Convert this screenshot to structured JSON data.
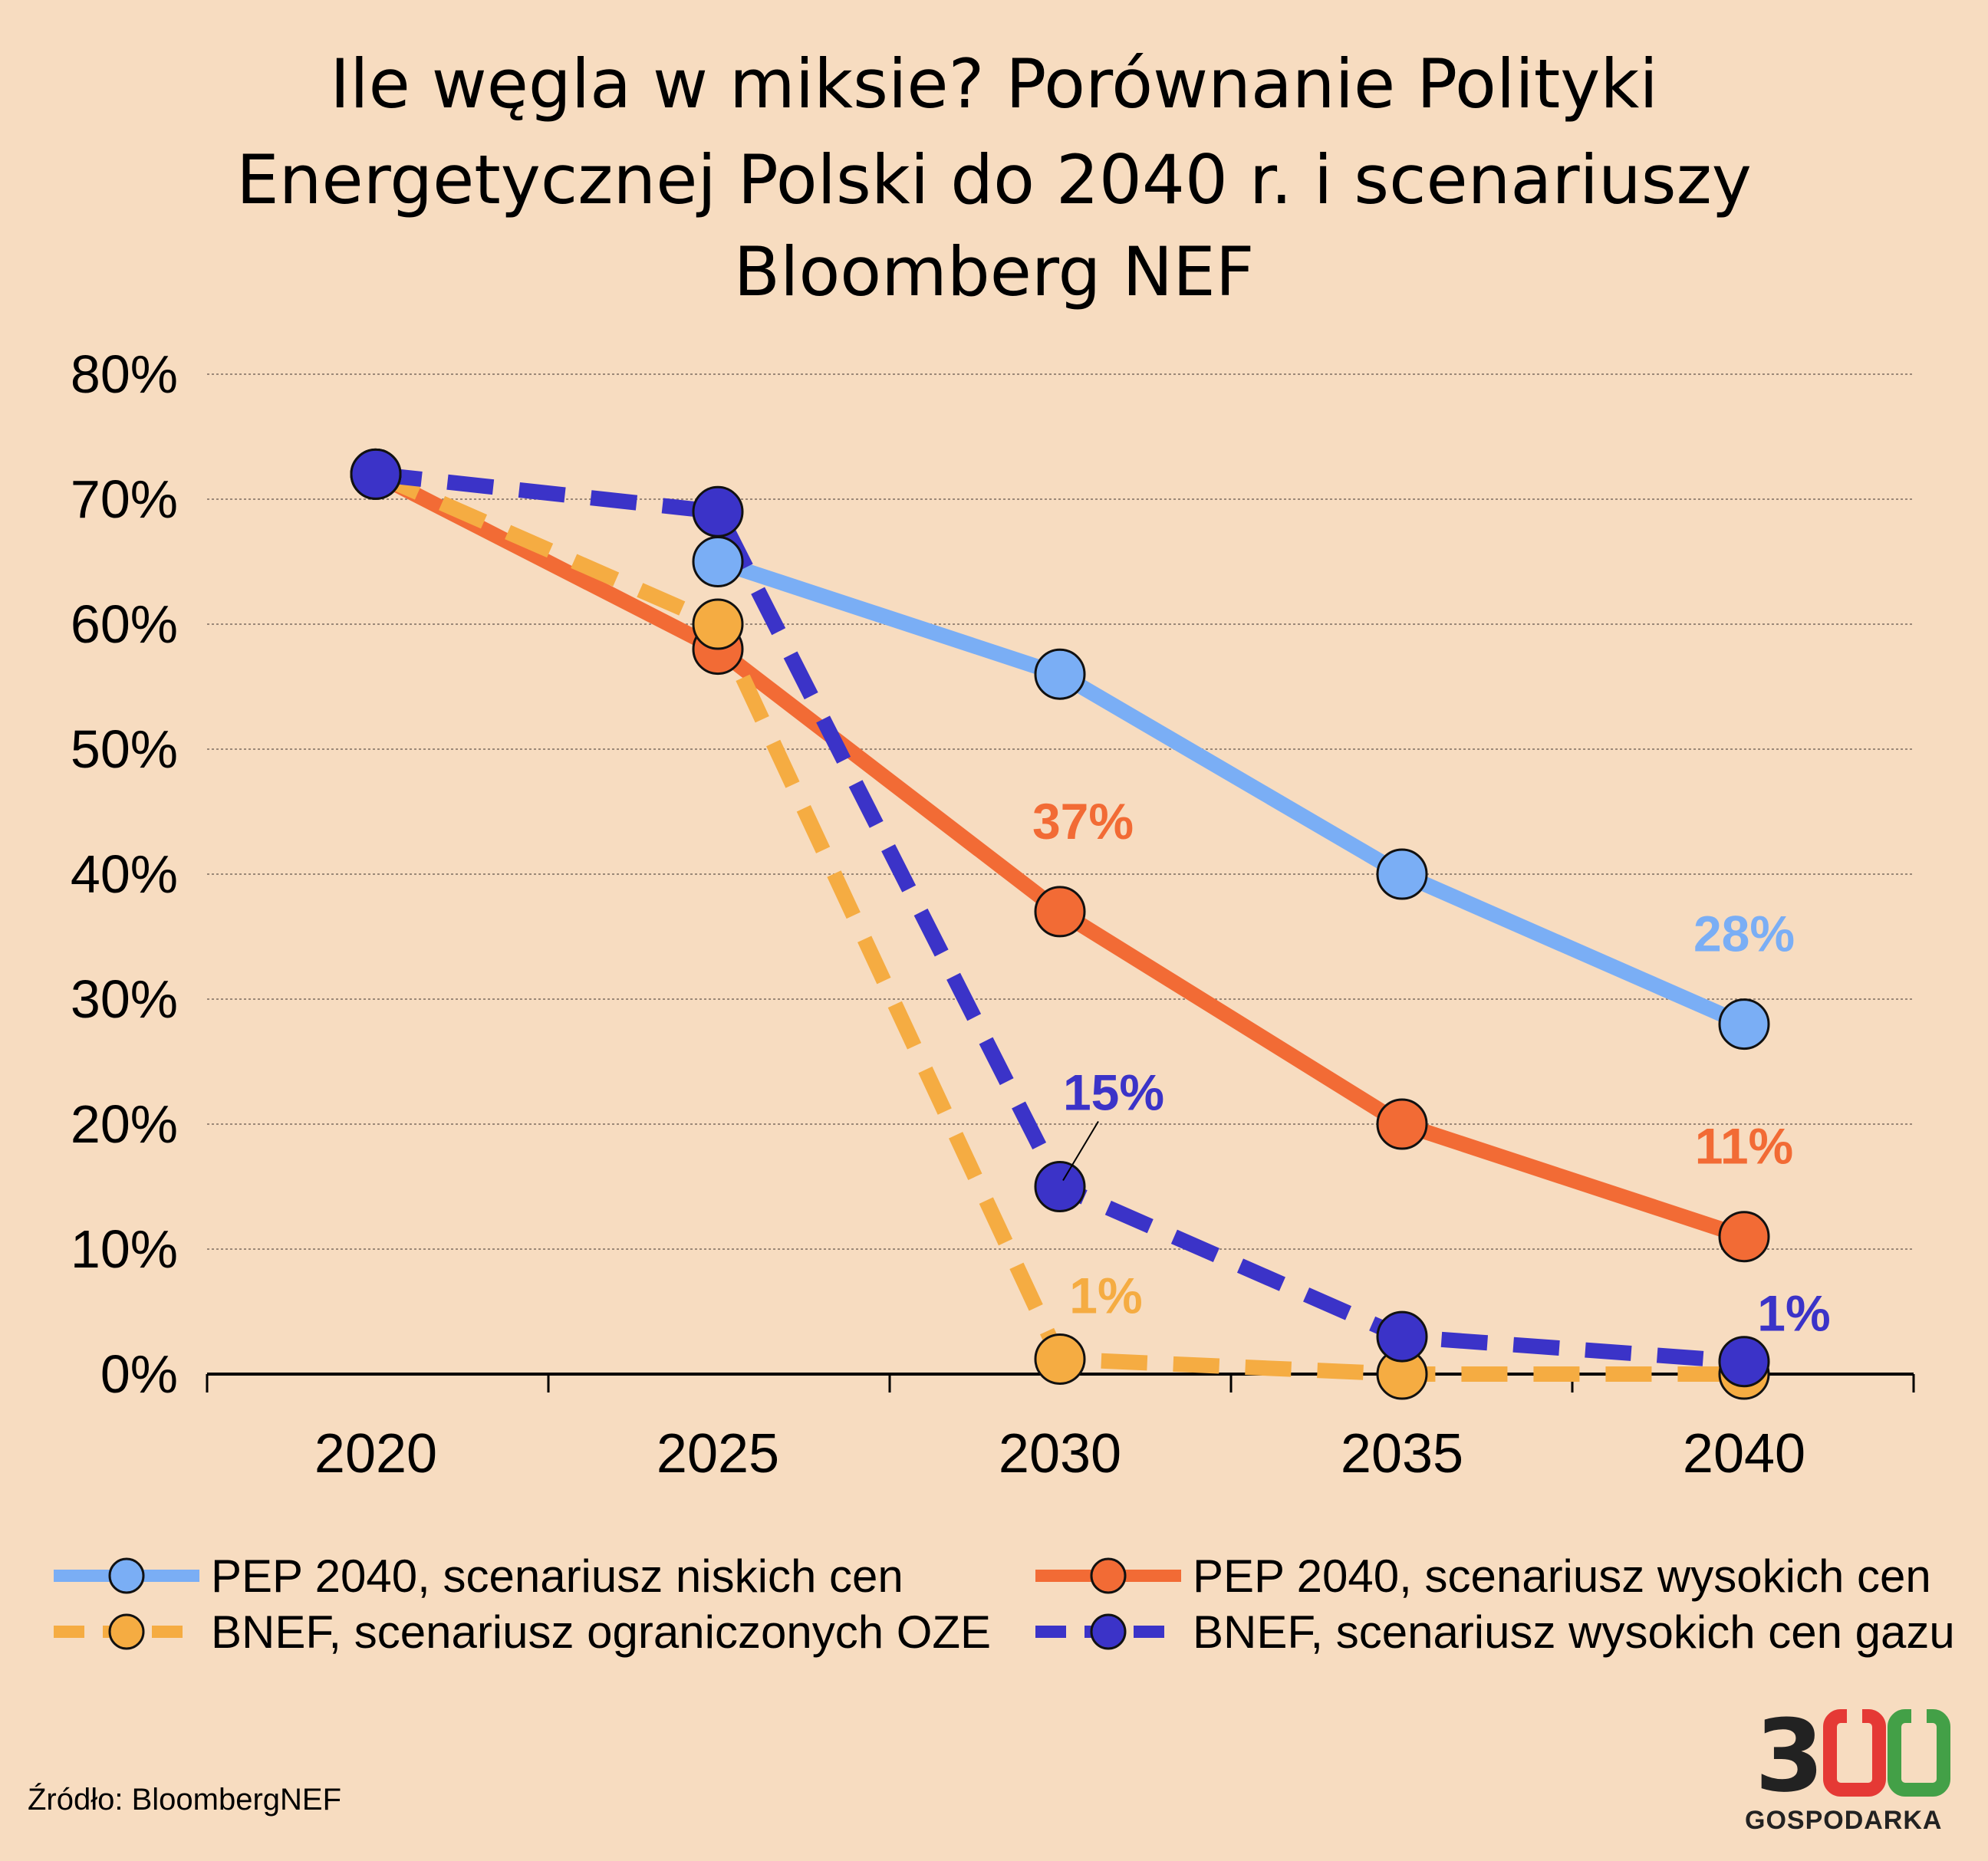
{
  "chart_data": {
    "type": "line",
    "title": "Ile węgla w miksie? Porównanie Polityki Energetycznej Polski do 2040 r. i scenariuszy Bloomberg NEF",
    "title_lines": [
      "Ile węgla w miksie? Porównanie Polityki",
      "Energetycznej Polski do 2040 r. i scenariuszy",
      "Bloomberg NEF"
    ],
    "x": [
      "2020",
      "2025",
      "2030",
      "2035",
      "2040"
    ],
    "y_ticks": [
      "0%",
      "10%",
      "20%",
      "30%",
      "40%",
      "50%",
      "60%",
      "70%",
      "80%"
    ],
    "ylim": [
      0,
      80
    ],
    "grid": true,
    "legend_position": "bottom",
    "series": [
      {
        "name": "PEP 2040, scenariusz niskich cen",
        "color": "#7aaef5",
        "dashed": false,
        "values": [
          72,
          65,
          56,
          40,
          28
        ],
        "labels": [
          {
            "index": 4,
            "text": "28%"
          }
        ]
      },
      {
        "name": "PEP 2040, scenariusz wysokich cen",
        "color": "#f26b35",
        "dashed": false,
        "values": [
          72,
          58,
          37,
          20,
          11
        ],
        "labels": [
          {
            "index": 2,
            "text": "37%"
          },
          {
            "index": 4,
            "text": "11%"
          }
        ]
      },
      {
        "name": "BNEF, scenariusz ograniczonych OZE",
        "color": "#f5ac42",
        "dashed": true,
        "values": [
          72,
          60,
          1.2,
          0,
          0
        ],
        "labels": [
          {
            "index": 2,
            "text": "1%"
          }
        ]
      },
      {
        "name": "BNEF, scenariusz wysokich cen gazu",
        "color": "#3b33c8",
        "dashed": true,
        "values": [
          72,
          69,
          15,
          3,
          1
        ],
        "labels": [
          {
            "index": 2,
            "text": "15%"
          },
          {
            "index": 4,
            "text": "1%"
          }
        ]
      }
    ]
  },
  "source": "Źródło: BloombergNEF",
  "logo": {
    "digits": [
      "3",
      "0",
      "0"
    ],
    "digit_colors": [
      "#222222",
      "#e53935",
      "#43a047"
    ],
    "subtitle": "GOSPODARKA"
  }
}
